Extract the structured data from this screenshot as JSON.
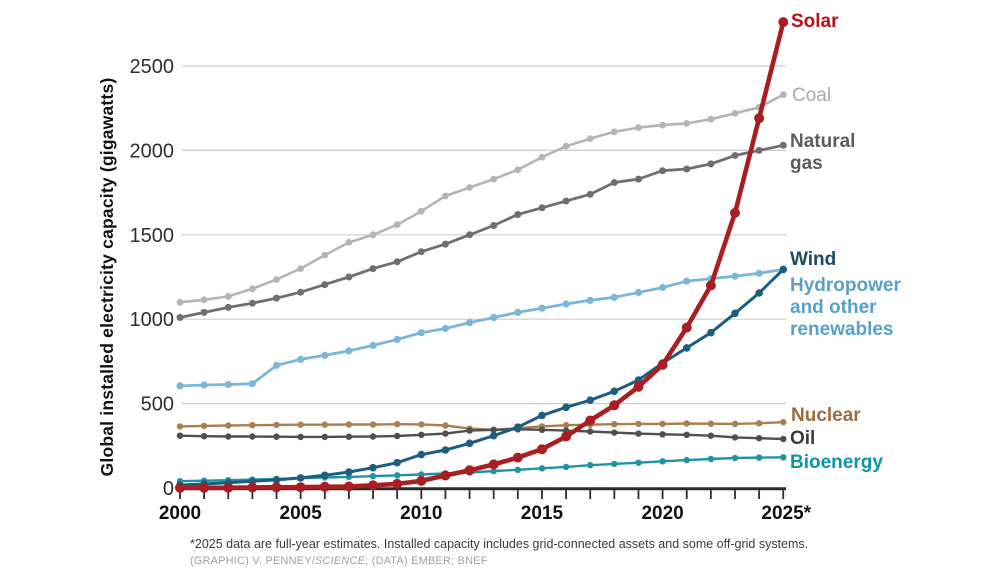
{
  "y_axis": {
    "label": "Global installed electricity capacity (gigawatts)",
    "tick_values": [
      0,
      500,
      1000,
      1500,
      2000,
      2500
    ]
  },
  "x_axis": {
    "tick_years": [
      2000,
      2005,
      2010,
      2015,
      2020,
      2025
    ],
    "tick_labels": [
      "2000",
      "2005",
      "2010",
      "2015",
      "2020",
      "2025*"
    ]
  },
  "footnote": {
    "note": "*2025 data are full-year estimates. Installed capacity includes grid-connected assets and some off-grid systems.",
    "credit_prefix": "(GRAPHIC) V. PENNEY/",
    "credit_italic": "SCIENCE",
    "credit_suffix": "; (DATA) EMBER; BNEF"
  },
  "chart_data": {
    "type": "line",
    "title": "",
    "xlabel": "",
    "ylabel": "Global installed electricity capacity (gigawatts)",
    "ylim": [
      0,
      2500
    ],
    "grid": true,
    "legend_position": "direct end-of-line labels at right",
    "x": [
      2000,
      2001,
      2002,
      2003,
      2004,
      2005,
      2006,
      2007,
      2008,
      2009,
      2010,
      2011,
      2012,
      2013,
      2014,
      2015,
      2016,
      2017,
      2018,
      2019,
      2020,
      2021,
      2022,
      2023,
      2024,
      2025
    ],
    "series": [
      {
        "key": "coal",
        "name": "Coal",
        "label_lines": [
          "Coal"
        ],
        "color": "#b5b5b5",
        "label_color": "#a9a9a9",
        "values": [
          1100,
          1115,
          1135,
          1180,
          1235,
          1300,
          1380,
          1455,
          1500,
          1560,
          1640,
          1730,
          1780,
          1830,
          1885,
          1960,
          2025,
          2070,
          2110,
          2135,
          2150,
          2160,
          2185,
          2220,
          2255,
          2330
        ]
      },
      {
        "key": "natural_gas",
        "name": "Natural gas",
        "label_lines": [
          "Natural",
          "gas"
        ],
        "color": "#6f6f6f",
        "label_color": "#5c5c5c",
        "values": [
          1010,
          1040,
          1070,
          1095,
          1125,
          1160,
          1205,
          1250,
          1300,
          1340,
          1400,
          1445,
          1500,
          1555,
          1620,
          1660,
          1700,
          1740,
          1810,
          1830,
          1880,
          1890,
          1920,
          1970,
          2000,
          2030
        ]
      },
      {
        "key": "hydropower",
        "name": "Hydropower and other renewables",
        "label_lines": [
          "Hydropower",
          "and other",
          "renewables"
        ],
        "color": "#7cb6d6",
        "label_color": "#58a0c8",
        "values": [
          605,
          610,
          613,
          618,
          727,
          762,
          786,
          812,
          845,
          880,
          920,
          945,
          980,
          1010,
          1040,
          1065,
          1090,
          1112,
          1130,
          1158,
          1188,
          1225,
          1240,
          1255,
          1272,
          1295
        ]
      },
      {
        "key": "nuclear",
        "name": "Nuclear",
        "label_lines": [
          "Nuclear"
        ],
        "color": "#a97f50",
        "label_color": "#9a6d3e",
        "values": [
          365,
          368,
          370,
          372,
          374,
          375,
          375,
          376,
          376,
          378,
          377,
          370,
          352,
          345,
          355,
          365,
          372,
          375,
          378,
          380,
          380,
          382,
          381,
          380,
          383,
          390
        ]
      },
      {
        "key": "oil",
        "name": "Oil",
        "label_lines": [
          "Oil"
        ],
        "color": "#4f4f4f",
        "label_color": "#3b3b3b",
        "values": [
          310,
          307,
          305,
          305,
          304,
          303,
          303,
          304,
          305,
          308,
          315,
          322,
          340,
          345,
          348,
          345,
          340,
          335,
          328,
          322,
          318,
          315,
          310,
          300,
          295,
          290
        ]
      },
      {
        "key": "bioenergy",
        "name": "Bioenergy",
        "label_lines": [
          "Bioenergy"
        ],
        "color": "#2191a6",
        "label_color": "#0e93ab",
        "values": [
          40,
          43,
          46,
          50,
          54,
          58,
          62,
          66,
          70,
          75,
          80,
          86,
          92,
          100,
          108,
          117,
          125,
          135,
          143,
          150,
          158,
          165,
          172,
          178,
          180,
          182
        ]
      },
      {
        "key": "wind",
        "name": "Wind",
        "label_lines": [
          "Wind"
        ],
        "color": "#1d5e7f",
        "label_color": "#1b4a61",
        "values": [
          17,
          24,
          31,
          40,
          48,
          60,
          75,
          95,
          120,
          150,
          198,
          225,
          265,
          310,
          360,
          430,
          478,
          520,
          573,
          640,
          740,
          830,
          920,
          1035,
          1155,
          1295
        ]
      },
      {
        "key": "solar",
        "name": "Solar",
        "label_lines": [
          "Solar"
        ],
        "color": "#a81e22",
        "label_color": "#b5121b",
        "values": [
          1,
          1,
          2,
          3,
          4,
          5,
          7,
          9,
          16,
          24,
          42,
          74,
          105,
          140,
          180,
          230,
          305,
          400,
          490,
          600,
          730,
          950,
          1200,
          1630,
          2190,
          2760
        ]
      }
    ]
  }
}
